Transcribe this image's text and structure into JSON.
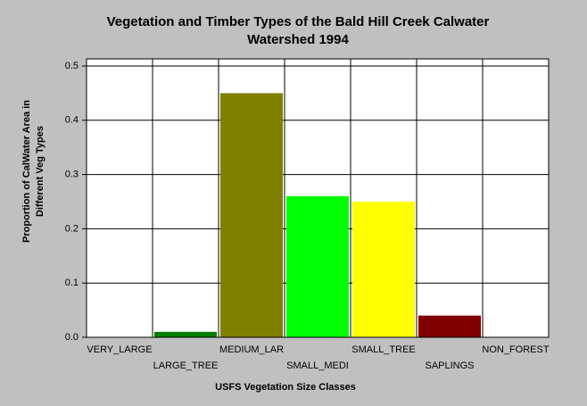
{
  "chart_data": {
    "type": "bar",
    "title": "Vegetation and Timber Types of the Bald Hill Creek Calwater",
    "subtitle": "Watershed 1994",
    "x_label": "USFS Vegetation Size Classes",
    "y_label": [
      "Proportion of CalWater Area in",
      "Different Veg Types"
    ],
    "categories": [
      "VERY_LARGE",
      "LARGE_TREE",
      "MEDIUM_LAR",
      "SMALL_MEDI",
      "SMALL_TREE",
      "SAPLINGS",
      "NON_FOREST"
    ],
    "values": [
      0,
      0.01,
      0.45,
      0.26,
      0.25,
      0.04,
      0
    ],
    "colors": [
      null,
      "#008000",
      "#808000",
      "#00ff00",
      "#ffff00",
      "#800000",
      null
    ],
    "ylim": [
      0,
      0.5
    ],
    "yticks": [
      {
        "value": 0,
        "label": "0.0"
      },
      0.1,
      0.2,
      0.3,
      0.4,
      0.5
    ],
    "grid": true
  }
}
